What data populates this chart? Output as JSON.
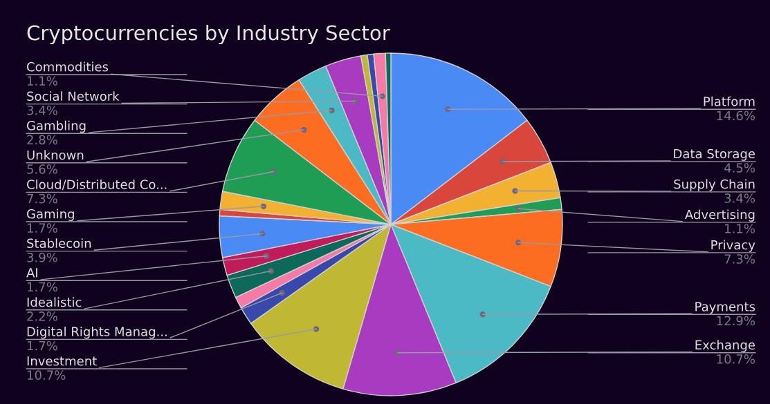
{
  "chart_data": {
    "type": "pie",
    "title": "Cryptocurrencies by Industry Sector",
    "categories": [
      "Platform",
      "Data Storage",
      "Supply Chain",
      "Advertising",
      "Privacy",
      "Payments",
      "Exchange",
      "Investment",
      "Digital Rights Manag...",
      null,
      "Idealistic",
      "AI",
      "Stablecoin",
      null,
      "Gaming",
      "Cloud/Distributed Co...",
      "Unknown",
      "Gambling",
      "Social Network",
      null,
      null,
      "Commodities",
      null
    ],
    "values": [
      14.6,
      4.5,
      3.4,
      1.1,
      7.3,
      12.9,
      10.7,
      10.7,
      1.7,
      1.1,
      2.2,
      1.7,
      3.9,
      0.6,
      1.7,
      7.3,
      5.6,
      2.8,
      3.4,
      0.6,
      0.6,
      1.1,
      0.5
    ],
    "value_labels": [
      "14.6%",
      "4.5%",
      "3.4%",
      "1.1%",
      "7.3%",
      "12.9%",
      "10.7%",
      "10.7%",
      "1.7%",
      null,
      "2.2%",
      "1.7%",
      "3.9%",
      null,
      "1.7%",
      "7.3%",
      "5.6%",
      "2.8%",
      "3.4%",
      null,
      null,
      "1.1%",
      null
    ],
    "colors": [
      "#4a8af4",
      "#d9473c",
      "#f2b130",
      "#1f9d55",
      "#fc6d22",
      "#4bbac4",
      "#a83bc0",
      "#c0b733",
      "#3949ab",
      "#f57aa6",
      "#0d6a5a",
      "#c01c5a",
      "#4a8af4",
      "#d9473c",
      "#f2b130",
      "#1f9d55",
      "#fc6d22",
      "#4bbac4",
      "#a83bc0",
      "#c0b733",
      "#3949ab",
      "#f57aa6",
      "#0d6a5a"
    ],
    "legend": false
  }
}
